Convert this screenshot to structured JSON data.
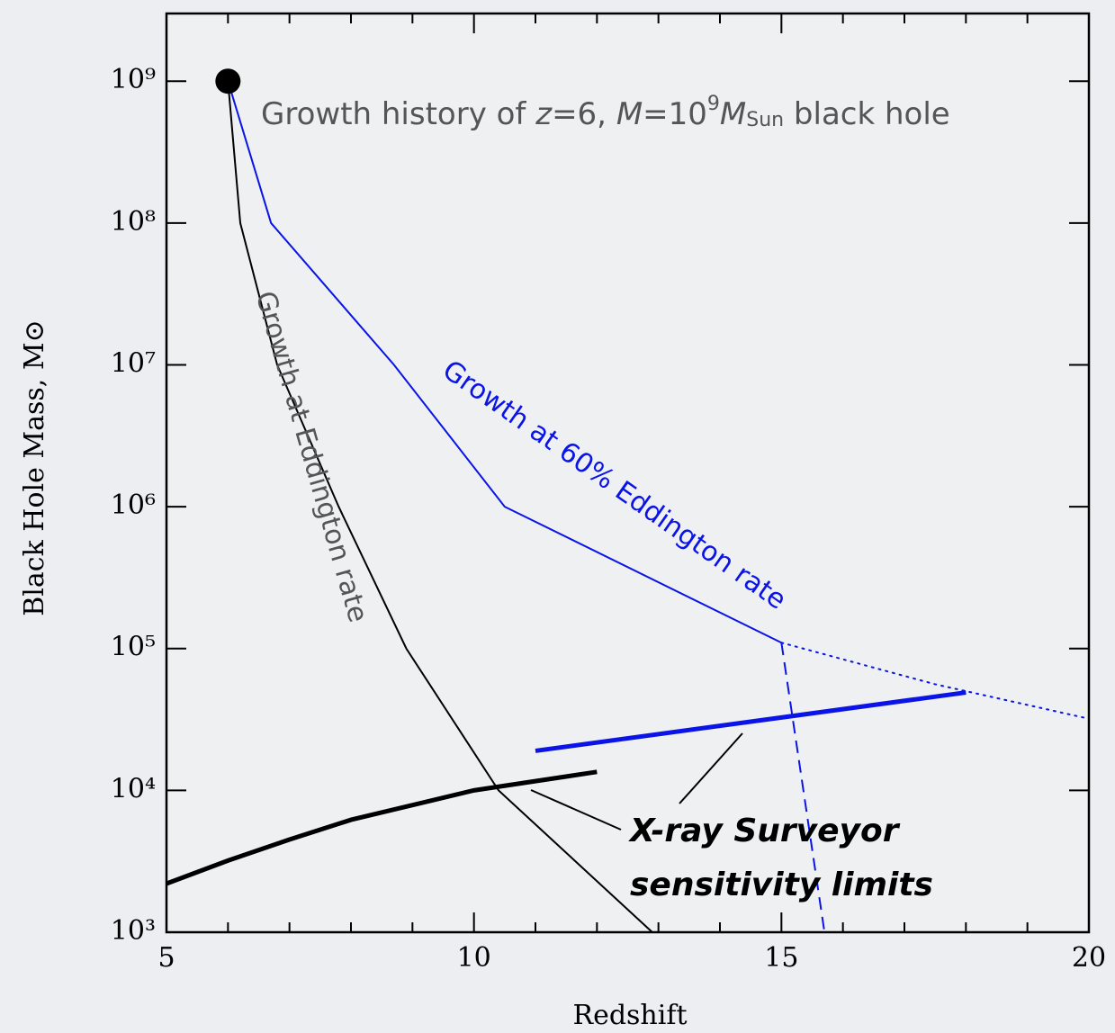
{
  "chart_data": {
    "type": "line",
    "xlabel": "Redshift",
    "ylabel": "Black Hole Mass, M⊙",
    "xlim": [
      5,
      20
    ],
    "ylim": [
      1000,
      3000000000
    ],
    "log_y": true,
    "xticks": [
      5,
      10,
      15,
      20
    ],
    "xminorticks": [
      6,
      7,
      8,
      9,
      11,
      12,
      13,
      14,
      16,
      17,
      18,
      19
    ],
    "yticks": [
      {
        "value": 1000,
        "label": "10³"
      },
      {
        "value": 10000,
        "label": "10⁴"
      },
      {
        "value": 100000,
        "label": "10⁵"
      },
      {
        "value": 1000000,
        "label": "10⁶"
      },
      {
        "value": 10000000,
        "label": "10⁷"
      },
      {
        "value": 100000000,
        "label": "10⁸"
      },
      {
        "value": 1000000000,
        "label": "10⁹"
      }
    ],
    "series": [
      {
        "name": "Growth at Eddington rate",
        "color": "#000000",
        "style": "solid",
        "width": 2,
        "x": [
          6,
          6.2,
          6.8,
          7.8,
          8.9,
          10.4,
          12.9
        ],
        "values": [
          1000000000,
          100000000,
          10000000,
          1000000,
          100000,
          10000,
          1000
        ]
      },
      {
        "name": "Growth at 60% Eddington rate",
        "color": "#0a14e6",
        "style": "solid",
        "width": 2,
        "x": [
          6,
          6.7,
          8.7,
          10.5,
          15
        ],
        "values": [
          1000000000,
          100000000,
          10000000,
          1000000,
          110000
        ]
      },
      {
        "color": "#0a14e6",
        "style": "dotted",
        "width": 2,
        "x": [
          15,
          17.5,
          20
        ],
        "values": [
          110000,
          56000,
          32000
        ]
      },
      {
        "color": "#0a14e6",
        "style": "dashed",
        "width": 2,
        "x": [
          15,
          15.7
        ],
        "values": [
          110000,
          1000
        ]
      },
      {
        "color": "#000000",
        "style": "solid",
        "width": 5,
        "x": [
          5,
          6,
          7,
          8,
          10,
          12
        ],
        "values": [
          2200,
          3200,
          4500,
          6200,
          10000,
          13500
        ]
      },
      {
        "color": "#0a14e6",
        "style": "solid",
        "width": 5,
        "x": [
          11,
          18
        ],
        "values": [
          19000,
          49000
        ]
      }
    ],
    "marker": {
      "x": 6,
      "y": 1000000000,
      "color": "#000000"
    },
    "headline": [
      "Growth history of ",
      "z",
      "=6, ",
      "M",
      "=10",
      "9",
      "M",
      "Sun",
      " black hole"
    ],
    "sensitivity_label": [
      "X-ray Surveyor",
      "sensitivity limits"
    ]
  }
}
